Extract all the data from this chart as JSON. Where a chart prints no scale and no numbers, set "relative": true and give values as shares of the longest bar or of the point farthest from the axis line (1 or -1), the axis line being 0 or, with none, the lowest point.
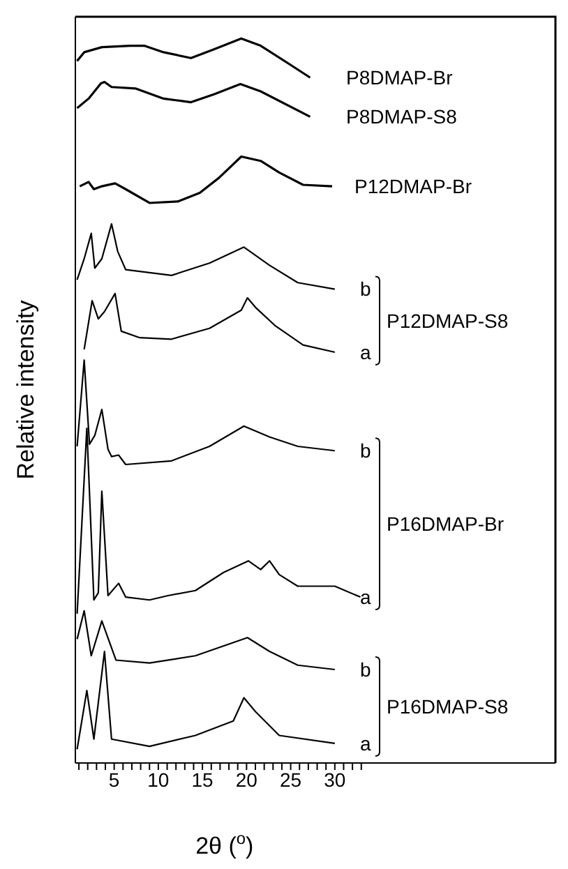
{
  "chart_data": {
    "type": "line",
    "relative": true,
    "xlabel": "2θ ($^{o}$)",
    "ylabel": "Relative intensity",
    "marker": "none",
    "line_style": "solid",
    "xlim": [
      0.6,
      55
    ],
    "xticks": [
      {
        "value": 1,
        "label": null
      },
      {
        "value": 2,
        "label": null
      },
      {
        "value": 3,
        "label": null
      },
      {
        "value": 4,
        "label": null
      },
      5,
      {
        "value": 6,
        "label": null
      },
      {
        "value": 7,
        "label": null
      },
      {
        "value": 8,
        "label": null
      },
      {
        "value": 9,
        "label": null
      },
      10,
      {
        "value": 11,
        "label": null
      },
      {
        "value": 12,
        "label": null
      },
      {
        "value": 13,
        "label": null
      },
      {
        "value": 14,
        "label": null
      },
      15,
      {
        "value": 16,
        "label": null
      },
      {
        "value": 17,
        "label": null
      },
      {
        "value": 18,
        "label": null
      },
      {
        "value": 19,
        "label": null
      },
      20,
      {
        "value": 21,
        "label": null
      },
      {
        "value": 22,
        "label": null
      },
      {
        "value": 23,
        "label": null
      },
      {
        "value": 24,
        "label": null
      },
      25,
      {
        "value": 26,
        "label": null
      },
      {
        "value": 27,
        "label": null
      },
      {
        "value": 28,
        "label": null
      },
      {
        "value": 29,
        "label": null
      },
      30,
      {
        "value": 31,
        "label": null
      },
      {
        "value": 32,
        "label": null
      },
      {
        "value": 33,
        "label": null
      }
    ],
    "series": [
      {
        "name": "P8DMAP-Br",
        "color": "#000000",
        "x": [
          0.8,
          1.6,
          3.6,
          6.8,
          8.4,
          10.6,
          13.7,
          16.3,
          19.4,
          21.6,
          24.8,
          27.2
        ],
        "values": [
          0.969,
          0.981,
          0.988,
          0.99,
          0.99,
          0.981,
          0.973,
          0.985,
          1,
          0.99,
          0.965,
          0.946
        ]
      },
      {
        "name": "P8DMAP-S8",
        "color": "#000000",
        "x": [
          0.8,
          2.1,
          3.5,
          3.9,
          4.7,
          7.4,
          10.6,
          13.7,
          16.3,
          19.3,
          21.6,
          27.2
        ],
        "values": [
          0.904,
          0.917,
          0.938,
          0.94,
          0.933,
          0.931,
          0.917,
          0.912,
          0.923,
          0.937,
          0.927,
          0.892
        ]
      },
      {
        "name": "P12DMAP-Br",
        "color": "#000000",
        "x": [
          1.1,
          2.1,
          2.7,
          3.6,
          5.1,
          6.3,
          9.0,
          12.2,
          14.7,
          16.9,
          19.4,
          21.6,
          23.7,
          26.4,
          29.7
        ],
        "values": [
          0.796,
          0.802,
          0.792,
          0.796,
          0.8,
          0.792,
          0.773,
          0.775,
          0.787,
          0.808,
          0.837,
          0.831,
          0.815,
          0.798,
          0.796
        ]
      },
      {
        "name": "b",
        "color": "#000000",
        "x": [
          0.8,
          1.6,
          2.4,
          2.8,
          3.6,
          4.7,
          5.4,
          6.3,
          11.5,
          15.8,
          19.7,
          22.6,
          25.8,
          30.0
        ],
        "values": [
          0.667,
          0.696,
          0.731,
          0.683,
          0.696,
          0.744,
          0.706,
          0.681,
          0.673,
          0.69,
          0.712,
          0.687,
          0.663,
          0.654
        ]
      },
      {
        "name": "a",
        "color": "#000000",
        "x": [
          1.6,
          2.5,
          3.2,
          3.9,
          5.1,
          5.8,
          7.9,
          11.5,
          15.8,
          19.4,
          20.1,
          21.0,
          23.2,
          26.4,
          30.0
        ],
        "values": [
          0.571,
          0.638,
          0.613,
          0.623,
          0.648,
          0.596,
          0.587,
          0.585,
          0.6,
          0.625,
          0.642,
          0.629,
          0.604,
          0.577,
          0.567
        ]
      },
      {
        "name": "b",
        "color": "#000000",
        "x": [
          0.8,
          1.6,
          2.2,
          2.8,
          3.6,
          4.3,
          4.7,
          5.5,
          6.3,
          11.5,
          15.8,
          19.7,
          22.6,
          25.8,
          30.0
        ],
        "values": [
          0.437,
          0.556,
          0.44,
          0.452,
          0.488,
          0.433,
          0.423,
          0.425,
          0.412,
          0.417,
          0.437,
          0.465,
          0.45,
          0.437,
          0.431
        ]
      },
      {
        "name": "a",
        "color": "#000000",
        "x": [
          0.8,
          1.9,
          2.7,
          3.2,
          3.6,
          4.3,
          5.5,
          6.3,
          9.0,
          11.1,
          14.2,
          17.4,
          20.2,
          21.6,
          22.6,
          23.7,
          25.8,
          30.0,
          32.9
        ],
        "values": [
          0.206,
          0.462,
          0.225,
          0.235,
          0.375,
          0.231,
          0.248,
          0.229,
          0.225,
          0.231,
          0.238,
          0.263,
          0.279,
          0.267,
          0.279,
          0.26,
          0.244,
          0.244,
          0.229
        ]
      },
      {
        "name": "b",
        "color": "#000000",
        "x": [
          0.8,
          1.6,
          2.4,
          3.6,
          5.2,
          9.0,
          14.2,
          20.1,
          22.6,
          25.8,
          30.0
        ],
        "values": [
          0.171,
          0.21,
          0.148,
          0.196,
          0.142,
          0.138,
          0.148,
          0.173,
          0.154,
          0.135,
          0.129
        ]
      },
      {
        "name": "a",
        "color": "#000000",
        "x": [
          0.8,
          1.9,
          2.7,
          3.9,
          4.7,
          9.0,
          14.2,
          18.5,
          19.7,
          21.0,
          23.7,
          30.0
        ],
        "values": [
          0.019,
          0.1,
          0.033,
          0.154,
          0.033,
          0.023,
          0.038,
          0.058,
          0.09,
          0.071,
          0.038,
          0.027
        ]
      }
    ],
    "annotations": [
      "P12DMAP-S8",
      "P16DMAP-Br",
      "P16DMAP-S8"
    ]
  }
}
